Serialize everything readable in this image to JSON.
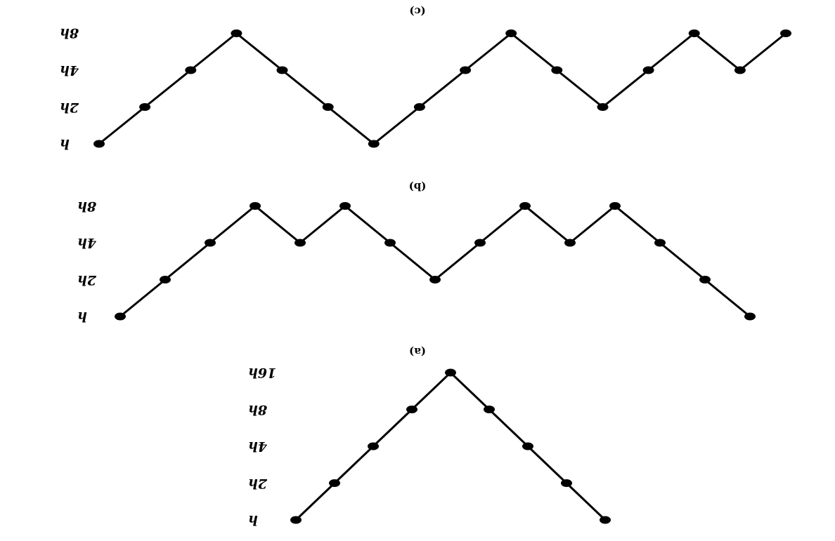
{
  "figure": {
    "orientation": "rotated-180",
    "panels": [
      {
        "id": "c",
        "label": "(c)",
        "levels": [
          "h",
          "2h",
          "4h",
          "8h"
        ],
        "sequence": [
          "h",
          "2h",
          "4h",
          "8h",
          "4h",
          "2h",
          "h",
          "2h",
          "4h",
          "8h",
          "4h",
          "2h",
          "4h",
          "8h",
          "4h",
          "8h"
        ]
      },
      {
        "id": "b",
        "label": "(b)",
        "levels": [
          "h",
          "2h",
          "4h",
          "8h"
        ],
        "sequence": [
          "h",
          "2h",
          "4h",
          "8h",
          "4h",
          "8h",
          "4h",
          "2h",
          "4h",
          "8h",
          "4h",
          "8h",
          "4h",
          "2h",
          "h"
        ]
      },
      {
        "id": "a",
        "label": "(a)",
        "levels": [
          "h",
          "2h",
          "4h",
          "8h",
          "16h"
        ],
        "sequence": [
          "h",
          "2h",
          "4h",
          "8h",
          "16h",
          "8h",
          "4h",
          "2h",
          "h"
        ]
      }
    ]
  }
}
